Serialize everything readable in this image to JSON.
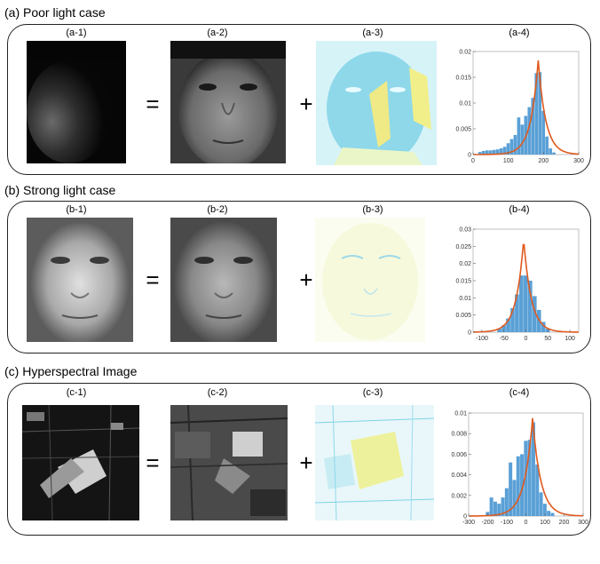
{
  "sections": [
    {
      "title": "(a) Poor light case",
      "labels": [
        "(a-1)",
        "(a-2)",
        "(a-3)",
        "(a-4)"
      ],
      "equals": "=",
      "plus": "+"
    },
    {
      "title": "(b) Strong light case",
      "labels": [
        "(b-1)",
        "(b-2)",
        "(b-3)",
        "(b-4)"
      ],
      "equals": "=",
      "plus": "+"
    },
    {
      "title": "(c) Hyperspectral Image",
      "labels": [
        "(c-1)",
        "(c-2)",
        "(c-3)",
        "(c-4)"
      ],
      "equals": "=",
      "plus": "+"
    }
  ],
  "colors": {
    "bar": "#5aa0d6",
    "curve": "#e05a1e",
    "residual_cyan": "#7fd3e6",
    "residual_yellow": "#f1ef8a"
  },
  "chart_data": [
    {
      "type": "bar",
      "xlim": [
        0,
        300
      ],
      "ylim": [
        0,
        0.02
      ],
      "xticks": [
        "0",
        "100",
        "200",
        "300"
      ],
      "yticks": [
        "0",
        "0.005",
        "0.01",
        "0.015",
        "0.02"
      ],
      "bins": [
        20,
        30,
        40,
        50,
        60,
        70,
        80,
        90,
        100,
        110,
        120,
        130,
        140,
        150,
        160,
        170,
        180,
        190,
        200,
        210,
        220,
        230
      ],
      "values": [
        0.0005,
        0.0007,
        0.0008,
        0.0008,
        0.0009,
        0.001,
        0.0012,
        0.0015,
        0.0022,
        0.003,
        0.0038,
        0.0072,
        0.0058,
        0.0075,
        0.0092,
        0.011,
        0.0158,
        0.016,
        0.0085,
        0.0035,
        0.0012,
        0.0004
      ],
      "curve_peak": [
        185,
        0.0183
      ]
    },
    {
      "type": "bar",
      "xlim": [
        -120,
        120
      ],
      "ylim": [
        0,
        0.03
      ],
      "xticks": [
        "-100",
        "-50",
        "0",
        "50",
        "100"
      ],
      "yticks": [
        "0",
        "0.005",
        "0.01",
        "0.015",
        "0.02",
        "0.025",
        "0.03"
      ],
      "bins": [
        -60,
        -50,
        -40,
        -30,
        -20,
        -10,
        0,
        10,
        20,
        30,
        40,
        50
      ],
      "values": [
        0.001,
        0.002,
        0.004,
        0.007,
        0.011,
        0.0165,
        0.0165,
        0.015,
        0.0105,
        0.0065,
        0.003,
        0.001
      ],
      "curve_peak": [
        -5,
        0.027
      ]
    },
    {
      "type": "bar",
      "xlim": [
        -300,
        300
      ],
      "ylim": [
        0,
        0.01
      ],
      "xticks": [
        "-300",
        "-200",
        "-100",
        "0",
        "100",
        "200",
        "300"
      ],
      "yticks": [
        "0",
        "0.002",
        "0.004",
        "0.006",
        "0.008",
        "0.01"
      ],
      "bins": [
        -200,
        -180,
        -160,
        -140,
        -120,
        -100,
        -80,
        -60,
        -40,
        -20,
        0,
        20,
        40,
        60,
        80,
        100,
        120,
        140
      ],
      "values": [
        0.0004,
        0.0018,
        0.0014,
        0.0012,
        0.0018,
        0.0027,
        0.0052,
        0.0035,
        0.0058,
        0.006,
        0.0073,
        0.0074,
        0.0091,
        0.005,
        0.0023,
        0.0012,
        0.0005,
        0.0003
      ],
      "curve_peak": [
        35,
        0.0095
      ]
    }
  ]
}
